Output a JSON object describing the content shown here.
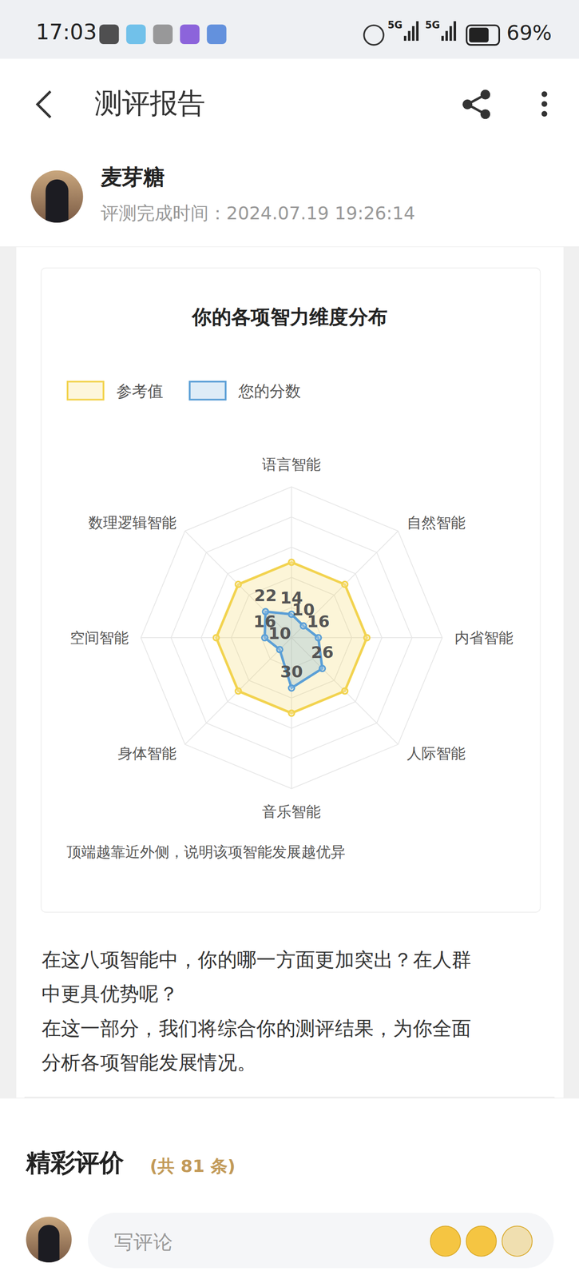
{
  "status_bar": {
    "time": "17:03",
    "signal": [
      "5G",
      "5G"
    ],
    "battery": "69%"
  },
  "header": {
    "title": "测评报告"
  },
  "user": {
    "name": "麦芽糖",
    "completed": "评测完成时间：2024.07.19 19:26:14"
  },
  "chart_data": {
    "type": "radar",
    "title": "你的各项智力维度分布",
    "categories": [
      "语言智能",
      "自然智能",
      "内省智能",
      "人际智能",
      "音乐智能",
      "身体智能",
      "空间智能",
      "数理逻辑智能"
    ],
    "series": [
      {
        "name": "参考值",
        "color": "#f2d34f",
        "marker": "circle",
        "values": [
          45,
          45,
          45,
          45,
          45,
          45,
          45,
          45
        ]
      },
      {
        "name": "您的分数",
        "color": "#5b9fd6",
        "marker": "circle",
        "data_labels": true,
        "values": [
          14,
          10,
          16,
          26,
          30,
          10,
          16,
          22
        ]
      }
    ],
    "ylim": [
      0,
      90
    ],
    "yticks": [
      0,
      18,
      36,
      54,
      72,
      90
    ],
    "grid": true,
    "legend": "top-left",
    "tick_labels": "x",
    "annotation": "顶端越靠近外侧，说明该项智能发展越优异"
  },
  "paragraphs": [
    [
      "在这八项智能中，你的哪一方面更加突出？在人群",
      "中更具优势呢？"
    ],
    [
      "在这一部分，我们将综合你的测评结果，为你全面",
      "分析各项智能发展情况。"
    ]
  ],
  "comments": {
    "title": "精彩评价",
    "count": "(共 81 条)",
    "placeholder": "写评论"
  }
}
